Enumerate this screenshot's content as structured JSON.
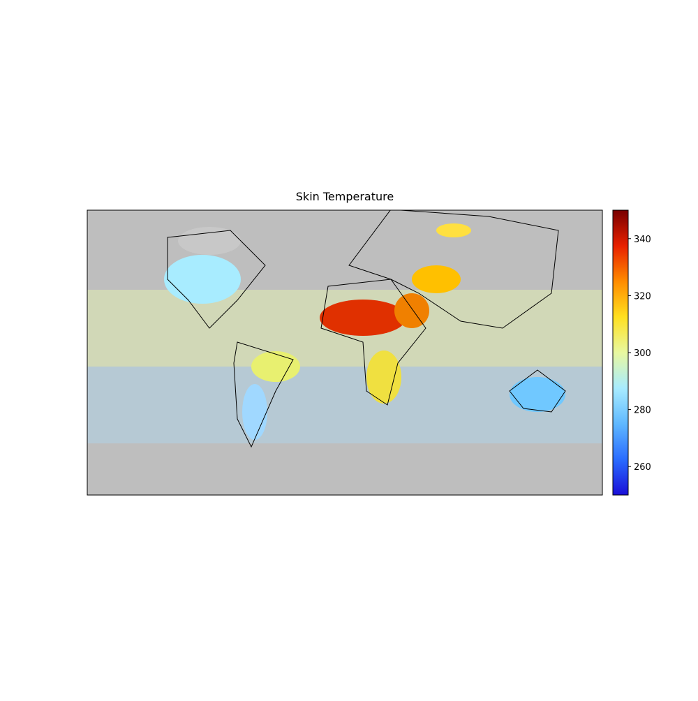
{
  "map": {
    "title": "Skin Temperature",
    "colorbar": {
      "lim": [
        250,
        350
      ],
      "ticks": [
        260,
        280,
        300,
        320,
        340
      ],
      "colormap": [
        "#1a0fd8",
        "#2a6cff",
        "#5fb8ff",
        "#a8ecff",
        "#e8f8a0",
        "#ffe020",
        "#ff8c00",
        "#e82000",
        "#780000"
      ]
    }
  }
}
